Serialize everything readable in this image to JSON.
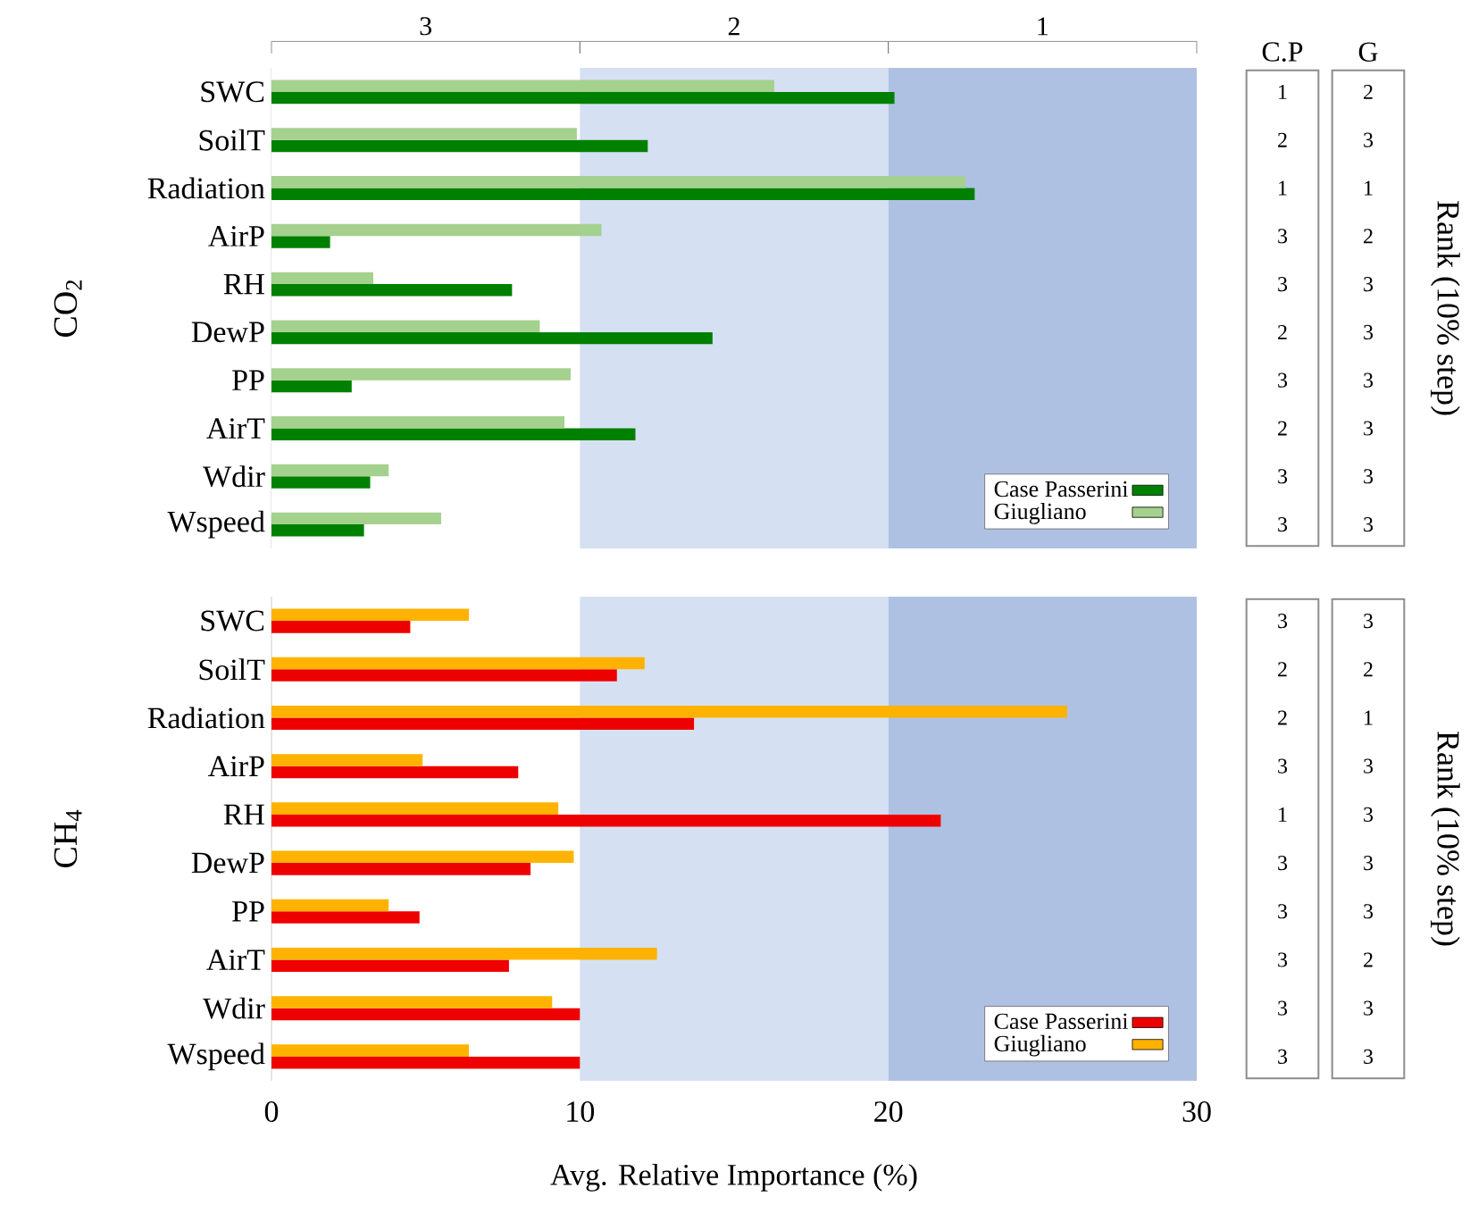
{
  "chart_data": [
    {
      "type": "bar",
      "orientation": "horizontal",
      "ylabel": "CO$_{2}$",
      "categories": [
        "SWC",
        "SoilT",
        "Radiation",
        "AirP",
        "RH",
        "DewP",
        "PP",
        "AirT",
        "Wdir",
        "Wspeed"
      ],
      "series": [
        {
          "name": "Case Passerini",
          "color": "#008000",
          "values": [
            20.2,
            12.2,
            22.8,
            1.9,
            7.8,
            14.3,
            2.6,
            11.8,
            3.2,
            3.0
          ]
        },
        {
          "name": "Giugliano",
          "color": "#a5d18f",
          "values": [
            16.3,
            9.9,
            22.5,
            10.7,
            3.3,
            8.7,
            9.7,
            9.5,
            3.8,
            5.5
          ]
        }
      ],
      "xlim": [
        0,
        30
      ],
      "xticks": [
        0,
        10,
        20,
        30
      ],
      "tick_labels": "y",
      "legend": "bottom right",
      "bands": [
        {
          "axis": "x",
          "from": 0,
          "to": 10,
          "label": "3",
          "color": "#ffffff"
        },
        {
          "axis": "x",
          "from": 10,
          "to": 20,
          "label": "2",
          "color": "#d5e1f2"
        },
        {
          "axis": "x",
          "from": 20,
          "to": 30,
          "label": "1",
          "color": "#afc1e3"
        }
      ]
    },
    {
      "type": "other",
      "ylabel": "Rank (10% step)",
      "categories": [
        "C.P",
        "G"
      ],
      "annotations": [
        "1",
        "2",
        "2",
        "3",
        "1",
        "1",
        "3",
        "2",
        "3",
        "3",
        "2",
        "3",
        "3",
        "3",
        "2",
        "3",
        "3",
        "3",
        "3",
        "3"
      ]
    },
    {
      "type": "bar",
      "orientation": "horizontal",
      "ylabel": "CH$_{4}$",
      "xlabel": "Avg. Relative Importance (%)",
      "categories": [
        "SWC",
        "SoilT",
        "Radiation",
        "AirP",
        "RH",
        "DewP",
        "PP",
        "AirT",
        "Wdir",
        "Wspeed"
      ],
      "series": [
        {
          "name": "Case Passerini",
          "color": "#ee0000",
          "values": [
            4.5,
            11.2,
            13.7,
            8.0,
            21.7,
            8.4,
            4.8,
            7.7,
            10.0,
            10.0
          ]
        },
        {
          "name": "Giugliano",
          "color": "#ffb300",
          "values": [
            6.4,
            12.1,
            25.8,
            4.9,
            9.3,
            9.8,
            3.8,
            12.5,
            9.1,
            6.4
          ]
        }
      ],
      "xlim": [
        0,
        30
      ],
      "xticks": [
        0,
        10,
        20,
        30
      ],
      "legend": "bottom right",
      "bands": [
        {
          "axis": "x",
          "from": 10,
          "to": 20,
          "color": "#d5e1f2"
        },
        {
          "axis": "x",
          "from": 20,
          "to": 30,
          "color": "#afc1e3"
        }
      ]
    },
    {
      "type": "other",
      "ylabel": "Rank (10% step)",
      "categories": [
        null,
        null
      ],
      "annotations": [
        "3",
        "3",
        "2",
        "2",
        "2",
        "1",
        "3",
        "3",
        "1",
        "3",
        "3",
        "3",
        "3",
        "3",
        "3",
        "2",
        "3",
        "3",
        "3",
        "3"
      ]
    }
  ]
}
